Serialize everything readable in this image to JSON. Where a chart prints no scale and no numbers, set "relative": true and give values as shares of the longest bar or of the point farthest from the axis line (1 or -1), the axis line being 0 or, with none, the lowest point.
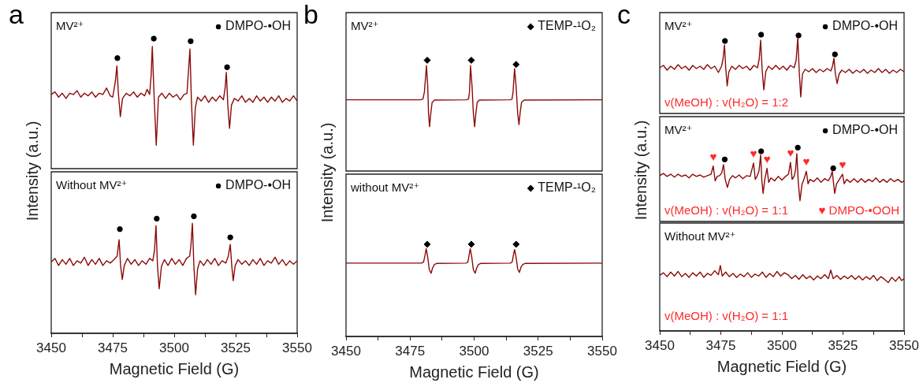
{
  "chart_data": [
    {
      "type": "line",
      "title": "MV²⁺",
      "ylabel": "Intensity (a.u.)",
      "annotations": [
        "a"
      ],
      "relative": true,
      "xlim": [
        3450,
        3550
      ],
      "tick_labels": false,
      "legend": "top right",
      "marker": "none",
      "series": [
        {
          "color": "#8b0a0a",
          "x": [
            3450,
            3451.5,
            3453,
            3454.5,
            3456,
            3457.5,
            3459,
            3460.5,
            3462,
            3463.5,
            3465,
            3466.5,
            3468,
            3469.5,
            3471,
            3472.5,
            3474,
            3475,
            3476,
            3476.7,
            3477.3,
            3478.1,
            3479,
            3480.5,
            3482,
            3483.5,
            3485,
            3486.5,
            3488,
            3489,
            3490,
            3490.6,
            3491.1,
            3491.8,
            3492.7,
            3493.6,
            3495,
            3496.5,
            3498,
            3499.5,
            3501,
            3502.5,
            3504,
            3505.2,
            3505.8,
            3506.4,
            3507,
            3507.8,
            3508.6,
            3509.5,
            3511,
            3512.5,
            3514,
            3515.5,
            3517,
            3518.5,
            3520,
            3520.7,
            3521.2,
            3521.8,
            3522.5,
            3523.3,
            3524.5,
            3526,
            3527.5,
            3529,
            3530.5,
            3532,
            3533.5,
            3535,
            3536.5,
            3538,
            3539.5,
            3541,
            3542.5,
            3544,
            3545.5,
            3547,
            3548.5,
            3550
          ],
          "values": [
            0.57,
            0.59,
            0.55,
            0.58,
            0.54,
            0.58,
            0.57,
            0.6,
            0.55,
            0.58,
            0.56,
            0.59,
            0.55,
            0.58,
            0.57,
            0.62,
            0.56,
            0.55,
            0.66,
            0.79,
            0.58,
            0.4,
            0.54,
            0.58,
            0.56,
            0.59,
            0.55,
            0.58,
            0.56,
            0.61,
            0.57,
            0.71,
            0.94,
            0.57,
            0.18,
            0.55,
            0.58,
            0.54,
            0.58,
            0.55,
            0.57,
            0.53,
            0.57,
            0.58,
            0.75,
            0.92,
            0.52,
            0.18,
            0.47,
            0.55,
            0.52,
            0.56,
            0.51,
            0.55,
            0.52,
            0.56,
            0.53,
            0.62,
            0.74,
            0.49,
            0.31,
            0.49,
            0.54,
            0.52,
            0.56,
            0.51,
            0.54,
            0.51,
            0.56,
            0.52,
            0.55,
            0.51,
            0.55,
            0.52,
            0.56,
            0.51,
            0.54,
            0.52,
            0.56,
            0.52
          ]
        },
        {
          "type": "scatter",
          "name": "DMPO-•OH",
          "color": "#000000",
          "marker": "circle",
          "x": [
            3476.9,
            3491.7,
            3506.7,
            3521.5
          ],
          "values": [
            0.85,
            1.0,
            0.98,
            0.78
          ]
        }
      ]
    },
    {
      "type": "line",
      "title": "Without MV²⁺",
      "relative": true,
      "xlim": [
        3450,
        3550
      ],
      "xticks": [
        3450,
        {
          "value": 3462.5,
          "label": null
        },
        3475,
        {
          "value": 3487.5,
          "label": null
        },
        3500,
        {
          "value": 3512.5,
          "label": null
        },
        3525,
        {
          "value": 3537.5,
          "label": null
        },
        3550
      ],
      "xlabel": "Magnetic Field (G)",
      "legend": "top right",
      "marker": "none",
      "series": [
        {
          "color": "#8b0a0a",
          "x": [
            3450,
            3451.5,
            3453,
            3454.5,
            3456,
            3457.5,
            3459,
            3460.5,
            3462,
            3463.5,
            3465,
            3466.5,
            3468,
            3469.5,
            3471,
            3472.5,
            3474,
            3475.5,
            3476.8,
            3477.6,
            3478.2,
            3478.9,
            3479.7,
            3481,
            3482.5,
            3484,
            3485.5,
            3487,
            3488.5,
            3490,
            3491.3,
            3492,
            3492.6,
            3493.2,
            3493.9,
            3494.8,
            3496,
            3497.5,
            3499,
            3500.5,
            3502,
            3503.5,
            3505,
            3506.3,
            3506.8,
            3507.4,
            3508,
            3508.7,
            3509.5,
            3510.5,
            3512,
            3513.5,
            3515,
            3516.5,
            3518,
            3519.5,
            3521,
            3522,
            3522.8,
            3523.4,
            3524,
            3524.8,
            3526,
            3527.5,
            3529,
            3530.5,
            3532,
            3533.5,
            3535,
            3536.5,
            3538,
            3539.5,
            3541,
            3542.5,
            3544,
            3545.5,
            3547,
            3548.5,
            3550
          ],
          "values": [
            0.61,
            0.64,
            0.58,
            0.63,
            0.59,
            0.64,
            0.58,
            0.62,
            0.6,
            0.65,
            0.58,
            0.63,
            0.59,
            0.64,
            0.58,
            0.62,
            0.6,
            0.63,
            0.66,
            0.8,
            0.58,
            0.46,
            0.58,
            0.64,
            0.59,
            0.63,
            0.58,
            0.62,
            0.59,
            0.64,
            0.62,
            0.71,
            0.92,
            0.58,
            0.38,
            0.57,
            0.63,
            0.58,
            0.64,
            0.59,
            0.63,
            0.58,
            0.64,
            0.66,
            0.75,
            0.94,
            0.58,
            0.33,
            0.55,
            0.62,
            0.58,
            0.63,
            0.59,
            0.64,
            0.58,
            0.62,
            0.6,
            0.66,
            0.76,
            0.58,
            0.45,
            0.58,
            0.63,
            0.59,
            0.62,
            0.58,
            0.63,
            0.59,
            0.64,
            0.58,
            0.62,
            0.6,
            0.65,
            0.59,
            0.63,
            0.58,
            0.62,
            0.59,
            0.62
          ]
        },
        {
          "type": "scatter",
          "name": "DMPO-•OH",
          "color": "#000000",
          "marker": "circle",
          "x": [
            3477.9,
            3492.9,
            3508.0,
            3522.8
          ],
          "values": [
            0.89,
            0.98,
            1.0,
            0.82
          ]
        }
      ]
    },
    {
      "type": "line",
      "title": "MV²⁺",
      "ylabel": "Intensity (a.u.)",
      "annotations": [
        "b"
      ],
      "relative": true,
      "xlim": [
        3450,
        3550
      ],
      "tick_labels": false,
      "legend": "top right",
      "marker": "none",
      "series": [
        {
          "color": "#8b0a0a",
          "x": [
            3450,
            3479,
            3480,
            3480.6,
            3481.4,
            3481.9,
            3482.2,
            3482.6,
            3483.1,
            3483.6,
            3484.5,
            3497,
            3497.8,
            3498.2,
            3498.6,
            3499.2,
            3499.7,
            3500.2,
            3500.7,
            3501.2,
            3502,
            3514,
            3514.8,
            3515.2,
            3515.8,
            3516.4,
            3517,
            3517.5,
            3518,
            3518.5,
            3519.5,
            3550
          ],
          "values": [
            0.643,
            0.643,
            0.648,
            0.714,
            0.952,
            0.762,
            0.524,
            0.4,
            0.524,
            0.619,
            0.64,
            0.643,
            0.648,
            0.714,
            0.952,
            0.762,
            0.524,
            0.4,
            0.524,
            0.619,
            0.64,
            0.643,
            0.648,
            0.714,
            0.924,
            0.762,
            0.524,
            0.419,
            0.533,
            0.619,
            0.64,
            0.643
          ]
        },
        {
          "type": "scatter",
          "name": "TEMP-¹O₂",
          "color": "#000000",
          "marker": "diamond",
          "x": [
            3481.7,
            3498.9,
            3516.4
          ],
          "values": [
            1.0,
            1.0,
            0.962
          ]
        }
      ]
    },
    {
      "type": "line",
      "title": "without MV²⁺",
      "relative": true,
      "xlim": [
        3450,
        3550
      ],
      "xticks": [
        3450,
        {
          "value": 3462.5,
          "label": null
        },
        3475,
        {
          "value": 3487.5,
          "label": null
        },
        3500,
        {
          "value": 3512.5,
          "label": null
        },
        3525,
        {
          "value": 3537.5,
          "label": null
        },
        3550
      ],
      "xlabel": "Magnetic Field (G)",
      "legend": "top right",
      "marker": "none",
      "series": [
        {
          "color": "#8b0a0a",
          "x": [
            3450,
            3479.5,
            3480.3,
            3480.8,
            3481.3,
            3481.9,
            3482.5,
            3483.2,
            3483.8,
            3484.5,
            3485.5,
            3497,
            3497.6,
            3498,
            3498.5,
            3499.1,
            3499.7,
            3500.4,
            3501,
            3501.7,
            3502.7,
            3514.2,
            3514.9,
            3515.3,
            3515.8,
            3516.4,
            3517,
            3517.7,
            3518.3,
            3519,
            3520,
            3550
          ],
          "values": [
            0.796,
            0.796,
            0.81,
            0.876,
            0.952,
            0.857,
            0.724,
            0.686,
            0.743,
            0.781,
            0.793,
            0.796,
            0.81,
            0.876,
            0.952,
            0.857,
            0.724,
            0.686,
            0.743,
            0.781,
            0.793,
            0.796,
            0.81,
            0.876,
            0.943,
            0.857,
            0.733,
            0.695,
            0.752,
            0.781,
            0.793,
            0.796
          ]
        },
        {
          "type": "scatter",
          "name": "TEMP-¹O₂",
          "color": "#000000",
          "marker": "diamond",
          "x": [
            3481.7,
            3498.9,
            3516.4
          ],
          "values": [
            1.0,
            1.0,
            1.0
          ]
        }
      ]
    },
    {
      "type": "line",
      "title": "MV²⁺",
      "ylabel": "Intensity (a.u.)",
      "annotations": [
        "c",
        "v(MeOH) : v(H₂O) = 1:2"
      ],
      "relative": true,
      "xlim": [
        3450,
        3550
      ],
      "tick_labels": false,
      "legend": "top right",
      "marker": "none",
      "series": [
        {
          "color": "#8b0a0a",
          "x": [
            3450,
            3451.5,
            3453,
            3454.5,
            3456,
            3457.5,
            3459,
            3460.5,
            3462,
            3463.5,
            3465,
            3466.5,
            3468,
            3469.5,
            3471,
            3472.5,
            3474,
            3475.3,
            3475.9,
            3476.5,
            3477,
            3477.6,
            3478.3,
            3479.5,
            3481,
            3482.5,
            3484,
            3485.5,
            3487,
            3488.5,
            3490,
            3490.7,
            3491.3,
            3491.9,
            3492.6,
            3493.4,
            3494.5,
            3496,
            3497.5,
            3499,
            3500.5,
            3502,
            3503.5,
            3505,
            3505.8,
            3506.5,
            3507.1,
            3507.7,
            3508.4,
            3509.5,
            3511,
            3512.5,
            3514,
            3515.5,
            3517,
            3518.5,
            3520,
            3520.7,
            3521.3,
            3521.9,
            3522.6,
            3523.4,
            3524.5,
            3526,
            3527.5,
            3529,
            3530.5,
            3532,
            3533.5,
            3535,
            3536.5,
            3538,
            3539.5,
            3541,
            3542.5,
            3544,
            3545.5,
            3547,
            3548.5,
            3550
          ],
          "values": [
            0.58,
            0.61,
            0.55,
            0.6,
            0.56,
            0.62,
            0.57,
            0.6,
            0.55,
            0.61,
            0.57,
            0.6,
            0.56,
            0.62,
            0.57,
            0.6,
            0.52,
            0.6,
            0.69,
            0.87,
            0.58,
            0.35,
            0.53,
            0.6,
            0.56,
            0.61,
            0.57,
            0.6,
            0.55,
            0.61,
            0.58,
            0.69,
            0.93,
            0.56,
            0.3,
            0.53,
            0.6,
            0.56,
            0.61,
            0.56,
            0.6,
            0.55,
            0.61,
            0.58,
            0.67,
            0.96,
            0.53,
            0.21,
            0.5,
            0.56,
            0.53,
            0.57,
            0.52,
            0.56,
            0.53,
            0.57,
            0.54,
            0.6,
            0.7,
            0.5,
            0.38,
            0.5,
            0.55,
            0.52,
            0.56,
            0.51,
            0.55,
            0.52,
            0.56,
            0.51,
            0.55,
            0.52,
            0.57,
            0.52,
            0.56,
            0.51,
            0.55,
            0.52,
            0.56,
            0.53
          ]
        },
        {
          "type": "scatter",
          "name": "DMPO-•OH",
          "color": "#000000",
          "marker": "circle",
          "x": [
            3476.7,
            3491.5,
            3506.8,
            3521.7
          ],
          "values": [
            0.92,
            1.0,
            0.99,
            0.75
          ]
        }
      ]
    },
    {
      "type": "line",
      "title": "MV²⁺",
      "annotations": [
        "v(MeOH) : v(H₂O) = 1:1",
        "♥ DMPO-•OOH",
        {
          "text": "♥",
          "x": 3471.9,
          "y": 0.75
        },
        {
          "text": "♥",
          "x": 3488.4,
          "y": 0.79
        },
        {
          "text": "♥",
          "x": 3493.9,
          "y": 0.72
        },
        {
          "text": "♥",
          "x": 3503.5,
          "y": 0.8
        },
        {
          "text": "♥",
          "x": 3510,
          "y": 0.68
        },
        {
          "text": "♥",
          "x": 3524.8,
          "y": 0.64
        }
      ],
      "relative": true,
      "xlim": [
        3450,
        3550
      ],
      "tick_labels": false,
      "legend": "top right",
      "marker": "none",
      "series": [
        {
          "color": "#8b0a0a",
          "x": [
            3450,
            3451.5,
            3453,
            3454.5,
            3456,
            3457.5,
            3459,
            3460.5,
            3462,
            3463.5,
            3465,
            3466.5,
            3468,
            3469.5,
            3471,
            3471.9,
            3472.7,
            3473.5,
            3474.5,
            3475.4,
            3476.1,
            3476.8,
            3477.7,
            3478.6,
            3479.8,
            3481,
            3482.5,
            3484,
            3485.5,
            3487,
            3488.4,
            3489.1,
            3489.8,
            3490.6,
            3491.3,
            3491.8,
            3492.3,
            3493,
            3493.9,
            3494.6,
            3495.5,
            3497,
            3498.5,
            3500,
            3501.5,
            3502.7,
            3503.5,
            3504.2,
            3505,
            3505.6,
            3506.1,
            3506.7,
            3507.4,
            3508.2,
            3509.2,
            3510,
            3510.7,
            3511.5,
            3513,
            3514.5,
            3516,
            3517.5,
            3519,
            3520,
            3520.6,
            3521.1,
            3521.6,
            3522.4,
            3523.5,
            3524.8,
            3525.5,
            3526.5,
            3528,
            3529.5,
            3531,
            3532.5,
            3534,
            3535.5,
            3537,
            3538.5,
            3540,
            3541.5,
            3543,
            3544.5,
            3546,
            3547.5,
            3549,
            3550
          ],
          "values": [
            0.62,
            0.65,
            0.61,
            0.64,
            0.6,
            0.64,
            0.61,
            0.63,
            0.59,
            0.64,
            0.61,
            0.63,
            0.6,
            0.62,
            0.64,
            0.75,
            0.55,
            0.61,
            0.62,
            0.66,
            0.77,
            0.57,
            0.46,
            0.57,
            0.62,
            0.59,
            0.63,
            0.58,
            0.62,
            0.61,
            0.79,
            0.57,
            0.61,
            0.68,
            0.9,
            0.55,
            0.38,
            0.57,
            0.72,
            0.53,
            0.59,
            0.55,
            0.61,
            0.56,
            0.61,
            0.64,
            0.8,
            0.57,
            0.61,
            0.7,
            0.92,
            0.53,
            0.28,
            0.5,
            0.59,
            0.68,
            0.51,
            0.57,
            0.54,
            0.59,
            0.53,
            0.58,
            0.55,
            0.61,
            0.68,
            0.53,
            0.38,
            0.51,
            0.57,
            0.64,
            0.51,
            0.57,
            0.53,
            0.58,
            0.53,
            0.58,
            0.53,
            0.57,
            0.54,
            0.59,
            0.53,
            0.57,
            0.53,
            0.58,
            0.54,
            0.57,
            0.53,
            0.55
          ]
        },
        {
          "type": "scatter",
          "name": "DMPO-•OH",
          "color": "#000000",
          "marker": "circle",
          "x": [
            3476.6,
            3491.5,
            3506.5,
            3521.0
          ],
          "values": [
            0.84,
            0.95,
            1.0,
            0.72
          ]
        }
      ]
    },
    {
      "type": "line",
      "title": "Without MV²⁺",
      "annotations": [
        "v(MeOH) : v(H₂O) = 1:1"
      ],
      "relative": true,
      "xlim": [
        3450,
        3550
      ],
      "xticks": [
        3450,
        {
          "value": 3462.5,
          "label": null
        },
        3475,
        {
          "value": 3487.5,
          "label": null
        },
        3500,
        {
          "value": 3512.5,
          "label": null
        },
        3525,
        {
          "value": 3537.5,
          "label": null
        },
        3550
      ],
      "xlabel": "Magnetic Field (G)",
      "marker": "none",
      "series": [
        {
          "color": "#8b0a0a",
          "x": [
            3450,
            3451.5,
            3453,
            3454.5,
            3456,
            3457.5,
            3459,
            3460.5,
            3462,
            3463.5,
            3465,
            3466.5,
            3468,
            3469.5,
            3471,
            3472.5,
            3474,
            3474.8,
            3475.6,
            3477,
            3478.5,
            3480,
            3481.5,
            3483,
            3484.5,
            3486,
            3487.5,
            3489,
            3490.5,
            3492,
            3493.5,
            3495,
            3496.5,
            3498,
            3499.5,
            3501,
            3502.5,
            3504,
            3505.5,
            3507,
            3508.5,
            3510,
            3511.5,
            3513,
            3514.5,
            3516,
            3517.5,
            3519,
            3520,
            3521,
            3522.5,
            3524,
            3525.5,
            3527,
            3528.5,
            3530,
            3531.5,
            3533,
            3534.5,
            3536,
            3537.5,
            3539,
            3540.5,
            3542,
            3543.5,
            3545,
            3546.5,
            3548,
            3549,
            3550
          ],
          "values": [
            0.85,
            0.89,
            0.83,
            0.9,
            0.84,
            0.91,
            0.83,
            0.88,
            0.82,
            0.89,
            0.84,
            0.9,
            0.82,
            0.88,
            0.85,
            0.92,
            0.86,
            1.0,
            0.84,
            0.9,
            0.83,
            0.88,
            0.82,
            0.87,
            0.83,
            0.89,
            0.82,
            0.87,
            0.84,
            0.9,
            0.82,
            0.88,
            0.83,
            0.91,
            0.84,
            0.89,
            0.86,
            0.8,
            0.85,
            0.79,
            0.86,
            0.8,
            0.84,
            0.78,
            0.84,
            0.8,
            0.86,
            0.8,
            0.93,
            0.8,
            0.85,
            0.79,
            0.84,
            0.8,
            0.85,
            0.79,
            0.84,
            0.78,
            0.83,
            0.79,
            0.85,
            0.77,
            0.83,
            0.79,
            0.74,
            0.82,
            0.76,
            0.83,
            0.77,
            0.8
          ]
        }
      ]
    }
  ]
}
